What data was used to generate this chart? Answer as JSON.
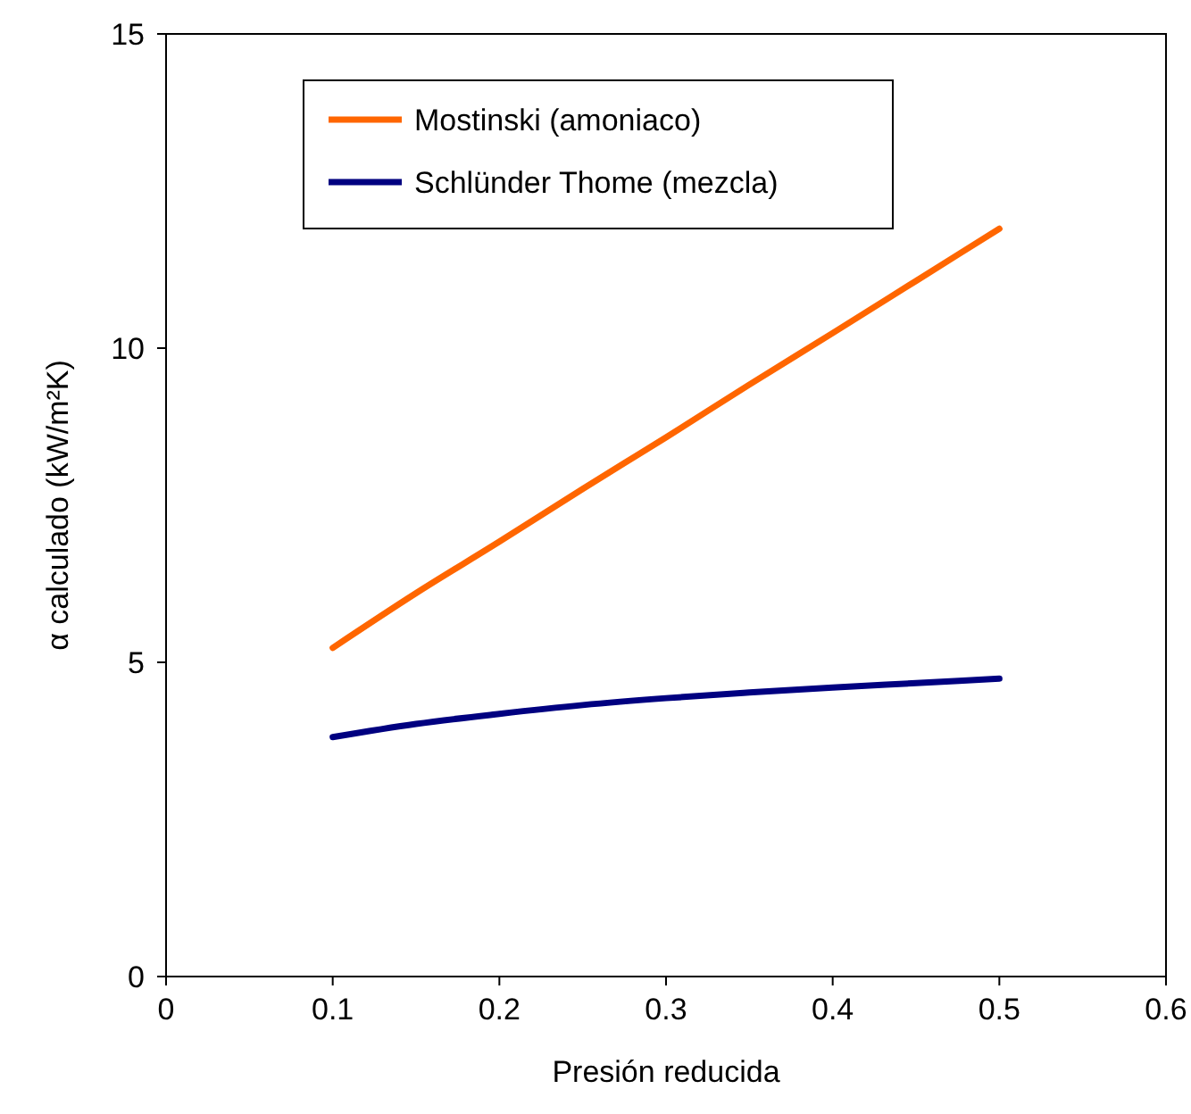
{
  "chart_data": {
    "type": "line",
    "xlabel": "Presión reducida",
    "ylabel": "α calculado (kW/m²K)",
    "xlim": [
      0,
      0.6
    ],
    "xticks": [
      0,
      0.1,
      0.2,
      0.3,
      0.4,
      0.5,
      0.6
    ],
    "ylim": [
      0,
      15
    ],
    "yticks": [
      0,
      5,
      10,
      15
    ],
    "grid": false,
    "legend": "top left",
    "marker": "none",
    "line_style": "solid",
    "series": [
      {
        "name": "Mostinski (amoniaco)",
        "color": "#ff6600",
        "x": [
          0.1,
          0.15,
          0.2,
          0.25,
          0.3,
          0.35,
          0.4,
          0.45,
          0.5
        ],
        "values": [
          5.23,
          6.1,
          6.92,
          7.76,
          8.58,
          9.42,
          10.24,
          11.07,
          11.9
        ]
      },
      {
        "name": "Schlünder Thome (mezcla)",
        "color": "#000080",
        "x": [
          0.1,
          0.15,
          0.2,
          0.25,
          0.3,
          0.35,
          0.4,
          0.45,
          0.5
        ],
        "values": [
          3.81,
          4.02,
          4.18,
          4.32,
          4.43,
          4.52,
          4.6,
          4.67,
          4.74
        ]
      }
    ]
  }
}
